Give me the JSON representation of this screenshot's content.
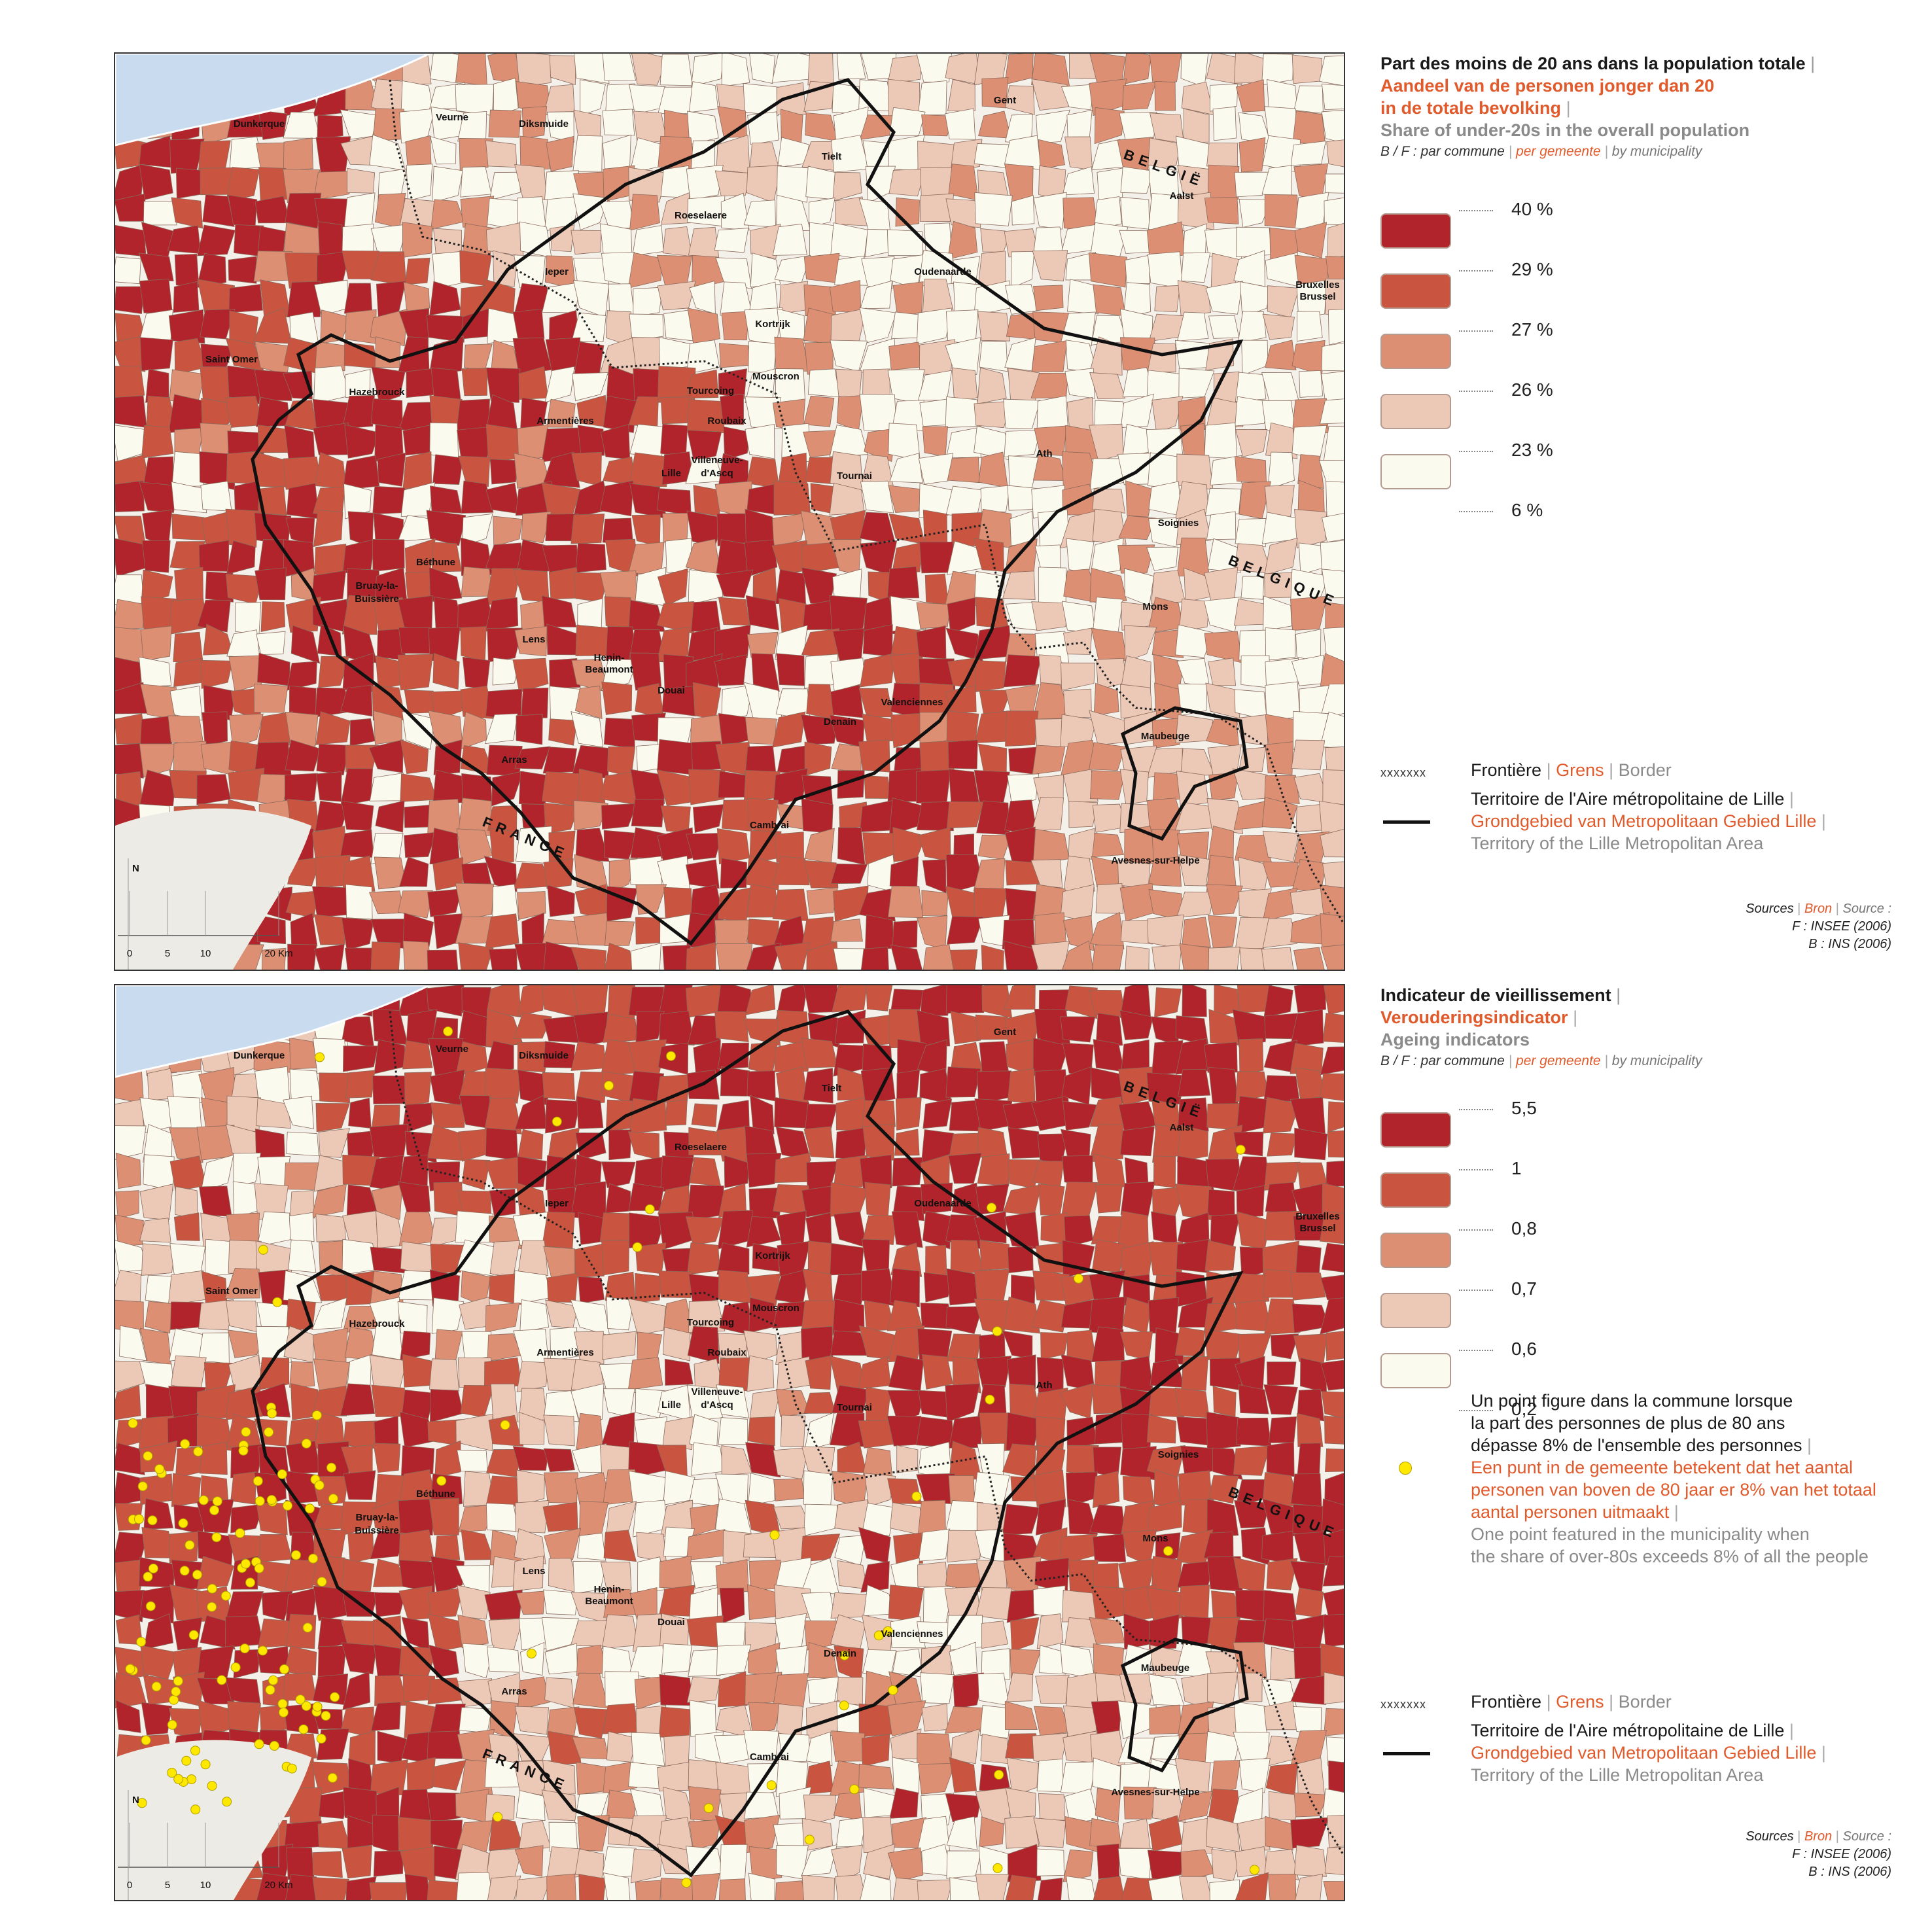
{
  "maps": [
    {
      "title": {
        "fr": "Part des moins de 20 ans dans la population totale",
        "nl_line1": "Aandeel van de personen jonger dan 20",
        "nl_line2": "in de totale bevolking",
        "en": "Share of under-20s in the overall population",
        "sub_fr": "B / F : par commune",
        "sub_nl": "per gemeente",
        "sub_en": "by municipality"
      },
      "classes": [
        "40 %",
        "29 %",
        "27 %",
        "26 %",
        "23 %",
        "6 %"
      ],
      "colors": [
        "#b2242b",
        "#c9543f",
        "#dc8f73",
        "#ecc8b6",
        "#fbfaee"
      ],
      "dot_note": null
    },
    {
      "title": {
        "fr": "Indicateur de vieillissement",
        "nl_line1": "Verouderingsindicator",
        "nl_line2": "",
        "en": "Ageing indicators",
        "sub_fr": "B / F : par commune",
        "sub_nl": "per gemeente",
        "sub_en": "by municipality"
      },
      "classes": [
        "5,5",
        "1",
        "0,8",
        "0,7",
        "0,6",
        "0,2"
      ],
      "colors": [
        "#b2242b",
        "#c9543f",
        "#dc8f73",
        "#ecc8b6",
        "#fbfaee"
      ],
      "dot_note": {
        "fr1": "Un point figure dans la commune lorsque",
        "fr2": "la part des personnes de plus de 80 ans",
        "fr3": "dépasse 8% de l'ensemble des personnes",
        "nl1": "Een punt in de gemeente betekent dat het aantal",
        "nl2": "personen van boven de 80 jaar er 8% van het totaal",
        "nl3": "aantal personen uitmaakt",
        "en1": "One point featured in the municipality when",
        "en2": "the share of over-80s exceeds 8% of all the people"
      }
    }
  ],
  "border_legend": {
    "frontier_fr": "Frontière",
    "frontier_nl": "Grens",
    "frontier_en": "Border",
    "territory_fr": "Territoire de l'Aire métropolitaine de Lille",
    "territory_nl": "Grondgebied van Metropolitaan Gebied Lille",
    "territory_en": "Territory of the Lille Metropolitan Area",
    "frontier_symbol": "xxxxxxx"
  },
  "sources": {
    "fr": "Sources",
    "nl": "Bron",
    "en": "Source :",
    "line_f": "F : INSEE (2006)",
    "line_b": "B : INS (2006)"
  },
  "cities": [
    "Dunkerque",
    "Veurne",
    "Diksmuide",
    "Gent",
    "Tielt",
    "Roeselaere",
    "Aalst",
    "Ieper",
    "Oudenaarde",
    "Bruxelles",
    "Brussel",
    "Kortrijk",
    "Saint Omer",
    "Mouscron",
    "Hazebrouck",
    "Tourcoing",
    "Armentières",
    "Roubaix",
    "Villeneuve-",
    "d'Ascq",
    "Lille",
    "Tournai",
    "Ath",
    "Soignies",
    "Béthune",
    "Bruay-la-",
    "Buissière",
    "Mons",
    "Lens",
    "Henin-",
    "Beaumont",
    "Douai",
    "Valenciennes",
    "Denain",
    "Arras",
    "Maubeuge",
    "Cambrai",
    "Avesnes-sur-Helpe"
  ],
  "countries": {
    "belgium": "BELGIË",
    "belgique": "BELGIQUE",
    "france": "FRANCE"
  },
  "scalebar": {
    "north": "N",
    "ticks": [
      "0",
      "5",
      "10",
      "20 Km"
    ]
  }
}
